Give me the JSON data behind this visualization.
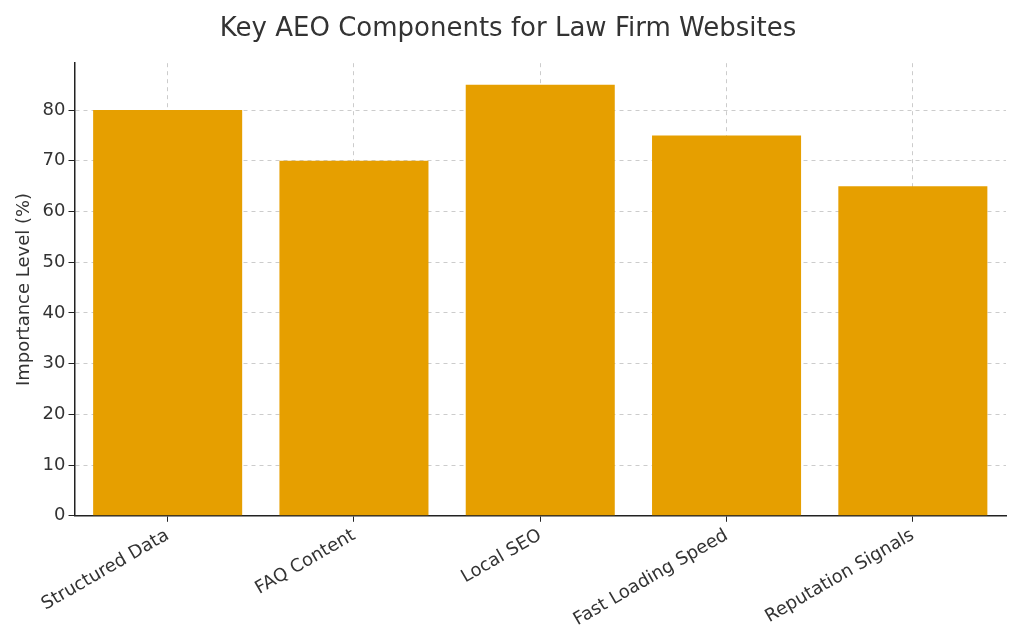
{
  "chart_data": {
    "type": "bar",
    "title": "Key AEO Components for Law Firm Websites",
    "ylabel": "Importance Level (%)",
    "categories": [
      "Structured Data",
      "FAQ Content",
      "Local SEO",
      "Fast Loading Speed",
      "Reputation Signals"
    ],
    "values": [
      80,
      70,
      85,
      75,
      65
    ],
    "color": "#e69f00",
    "ylim": [
      0,
      89.25
    ],
    "yticks": [
      0,
      10,
      20,
      30,
      40,
      50,
      60,
      70,
      80
    ],
    "grid": true,
    "legend": false
  }
}
